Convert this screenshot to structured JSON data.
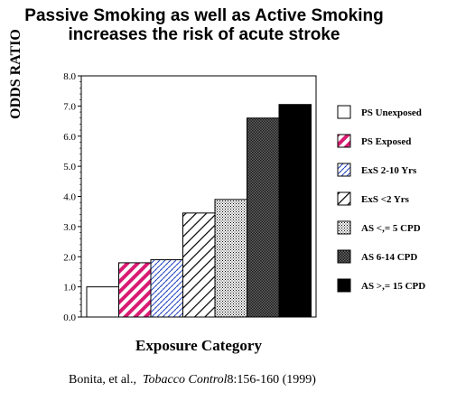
{
  "title_line1": "Passive Smoking as well as Active Smoking",
  "title_line2": "increases the risk of acute stroke",
  "citation": {
    "authors": "Bonita, et al.,",
    "journal": "Tobacco Control",
    "details": "8:156-160 (1999)"
  },
  "chart_data": {
    "type": "bar",
    "title": "Passive Smoking as well as Active Smoking increases the risk of acute stroke",
    "xlabel": "Exposure Category",
    "ylabel": "ODDS RATIO",
    "ylim": [
      0,
      8
    ],
    "yticks": [
      "0.0",
      "1.0",
      "2.0",
      "3.0",
      "4.0",
      "5.0",
      "6.0",
      "7.0",
      "8.0"
    ],
    "categories": [
      "PS Unexposed",
      "PS Exposed",
      "ExS 2-10 Yrs",
      "ExS <2 Yrs",
      "AS <,= 5 CPD",
      "AS 6-14 CPD",
      "AS >,= 15 CPD"
    ],
    "values": [
      1.0,
      1.8,
      1.9,
      3.45,
      3.9,
      6.6,
      7.05
    ],
    "patterns": [
      "white",
      "pink-diagonal",
      "blue-dotted",
      "diagonal-lines",
      "dense-dots",
      "crosshatch",
      "solid-black"
    ],
    "legend_position": "right",
    "grid": false
  }
}
